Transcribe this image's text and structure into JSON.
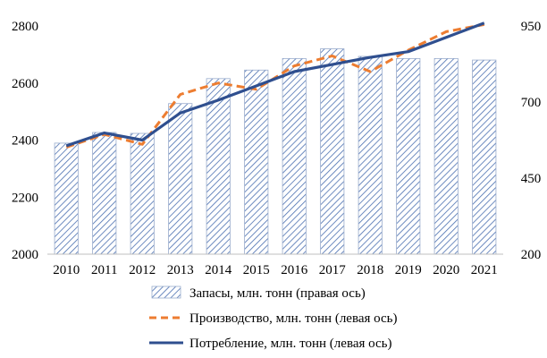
{
  "chart_data": {
    "type": "bar",
    "categories": [
      "2010",
      "2011",
      "2012",
      "2013",
      "2014",
      "2015",
      "2016",
      "2017",
      "2018",
      "2019",
      "2020",
      "2021"
    ],
    "series": [
      {
        "name": "Запасы, млн. тонн (правая ось)",
        "type": "bar",
        "axis": "right",
        "color": "#4a6fb0",
        "values": [
          565,
          600,
          597,
          695,
          777,
          805,
          843,
          875,
          850,
          843,
          843,
          838
        ]
      },
      {
        "name": "Производство, млн. тонн (левая ось)",
        "type": "line",
        "style": "dashed",
        "axis": "left",
        "color": "#ed7d31",
        "values": [
          2375,
          2420,
          2385,
          2560,
          2600,
          2578,
          2660,
          2695,
          2640,
          2715,
          2780,
          2805
        ]
      },
      {
        "name": "Потребление, млн. тонн (левая ось)",
        "type": "line",
        "style": "solid",
        "axis": "left",
        "color": "#2f4f8f",
        "values": [
          2380,
          2425,
          2400,
          2495,
          2540,
          2590,
          2640,
          2665,
          2690,
          2710,
          2760,
          2810
        ]
      }
    ],
    "left_axis": {
      "min": 2000,
      "max": 2800,
      "ticks": [
        2000,
        2200,
        2400,
        2600,
        2800
      ]
    },
    "right_axis": {
      "min": 200,
      "max": 950,
      "ticks": [
        200,
        450,
        700,
        950
      ]
    },
    "grid": false,
    "legend_position": "bottom"
  }
}
